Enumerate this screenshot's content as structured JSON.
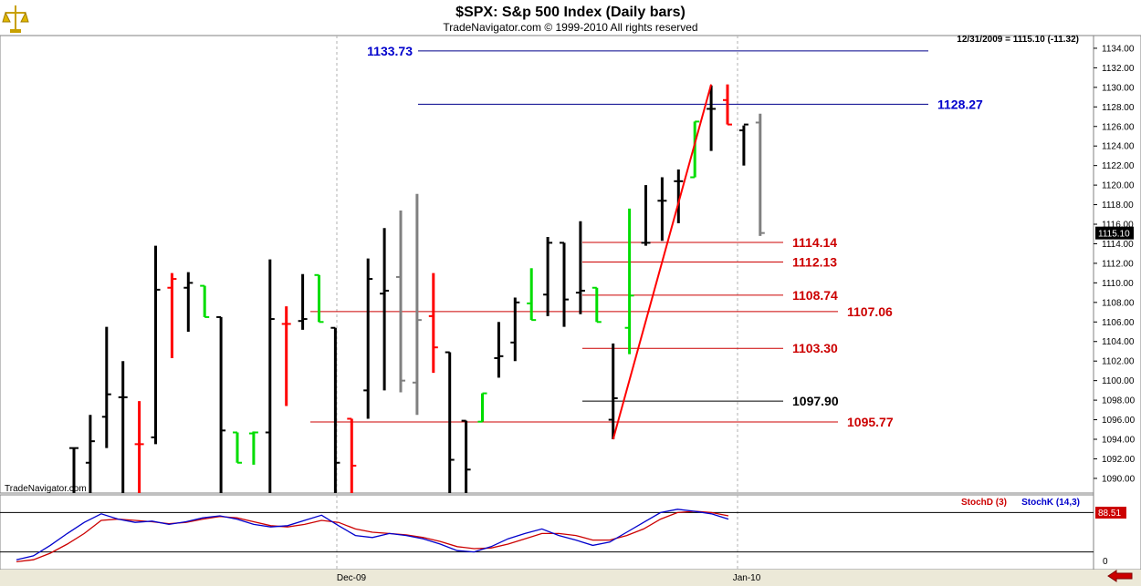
{
  "header": {
    "title": "$SPX:  S&p 500 Index  (Daily bars)",
    "copyright": "TradeNavigator.com © 1999-2010 All rights reserved",
    "last_bar_info": "12/31/2009 = 1115.10 (-11.32)",
    "watermark": "TradeNavigator.com"
  },
  "colors": {
    "up_bar": "#000000",
    "down_bar": "#ff0000",
    "green_bar": "#00dd00",
    "gray_bar": "#808080",
    "level_blue": "#00008b",
    "level_red": "#cc0000",
    "stoch_d": "#cc0000",
    "stoch_k": "#0000cc"
  },
  "chart_data": {
    "type": "bar",
    "subtype": "ohlc",
    "ylim": [
      1088.5,
      1135.3
    ],
    "y_ticks": [
      "1090.00",
      "1092.00",
      "1094.00",
      "1096.00",
      "1098.00",
      "1100.00",
      "1102.00",
      "1104.00",
      "1106.00",
      "1108.00",
      "1110.00",
      "1112.00",
      "1114.00",
      "1116.00",
      "1118.00",
      "1120.00",
      "1122.00",
      "1124.00",
      "1126.00",
      "1128.00",
      "1130.00",
      "1132.00",
      "1134.00"
    ],
    "x_ticks": [
      "Dec-09",
      "Jan-10"
    ],
    "last_price_label": "1115.10",
    "bars": [
      {
        "o": 1093.1,
        "h": 1093.1,
        "l": 1088.5,
        "c": 1093.1,
        "color": "black"
      },
      {
        "o": 1091.6,
        "h": 1096.5,
        "l": 1088.5,
        "c": 1093.8,
        "color": "black"
      },
      {
        "o": 1096.3,
        "h": 1105.5,
        "l": 1093.1,
        "c": 1098.6,
        "color": "black"
      },
      {
        "o": 1098.3,
        "h": 1102.0,
        "l": 1088.5,
        "c": 1098.3,
        "color": "black"
      },
      {
        "o": 1093.5,
        "h": 1097.9,
        "l": 1088.5,
        "c": 1093.5,
        "color": "red"
      },
      {
        "o": 1094.2,
        "h": 1113.8,
        "l": 1093.5,
        "c": 1109.3,
        "color": "black"
      },
      {
        "o": 1109.5,
        "h": 1111.0,
        "l": 1102.3,
        "c": 1110.4,
        "color": "red"
      },
      {
        "o": 1109.5,
        "h": 1111.1,
        "l": 1105.0,
        "c": 1110.0,
        "color": "black"
      },
      {
        "o": 1109.7,
        "h": 1109.7,
        "l": 1106.5,
        "c": 1106.5,
        "color": "green"
      },
      {
        "o": 1106.5,
        "h": 1106.5,
        "l": 1088.5,
        "c": 1094.9,
        "color": "black"
      },
      {
        "o": 1094.7,
        "h": 1094.7,
        "l": 1091.6,
        "c": 1091.6,
        "color": "green"
      },
      {
        "o": 1094.6,
        "h": 1094.8,
        "l": 1091.4,
        "c": 1094.7,
        "color": "green"
      },
      {
        "o": 1094.7,
        "h": 1112.4,
        "l": 1088.5,
        "c": 1106.3,
        "color": "black"
      },
      {
        "o": 1105.8,
        "h": 1107.6,
        "l": 1097.4,
        "c": 1105.8,
        "color": "red"
      },
      {
        "o": 1106.1,
        "h": 1110.9,
        "l": 1105.2,
        "c": 1106.3,
        "color": "black"
      },
      {
        "o": 1110.8,
        "h": 1110.8,
        "l": 1106.0,
        "c": 1106.0,
        "color": "green"
      },
      {
        "o": 1105.4,
        "h": 1105.4,
        "l": 1088.5,
        "c": 1091.6,
        "color": "black"
      },
      {
        "o": 1096.1,
        "h": 1096.1,
        "l": 1088.5,
        "c": 1091.3,
        "color": "red"
      },
      {
        "o": 1099.0,
        "h": 1112.5,
        "l": 1096.1,
        "c": 1110.4,
        "color": "black"
      },
      {
        "o": 1108.9,
        "h": 1115.6,
        "l": 1099.0,
        "c": 1109.2,
        "color": "black"
      },
      {
        "o": 1110.6,
        "h": 1117.4,
        "l": 1098.8,
        "c": 1100.0,
        "color": "gray"
      },
      {
        "o": 1099.8,
        "h": 1119.1,
        "l": 1096.5,
        "c": 1106.2,
        "color": "gray"
      },
      {
        "o": 1106.6,
        "h": 1111.0,
        "l": 1100.8,
        "c": 1103.4,
        "color": "red"
      },
      {
        "o": 1102.9,
        "h": 1102.9,
        "l": 1088.5,
        "c": 1091.9,
        "color": "black"
      },
      {
        "o": 1095.9,
        "h": 1095.9,
        "l": 1088.5,
        "c": 1090.9,
        "color": "black"
      },
      {
        "o": 1095.8,
        "h": 1098.7,
        "l": 1095.8,
        "c": 1098.7,
        "color": "green"
      },
      {
        "o": 1102.3,
        "h": 1106.0,
        "l": 1100.3,
        "c": 1102.5,
        "color": "black"
      },
      {
        "o": 1103.9,
        "h": 1108.5,
        "l": 1102.0,
        "c": 1108.0,
        "color": "black"
      },
      {
        "o": 1107.9,
        "h": 1111.5,
        "l": 1106.2,
        "c": 1106.2,
        "color": "green"
      },
      {
        "o": 1108.8,
        "h": 1114.7,
        "l": 1106.6,
        "c": 1114.1,
        "color": "black"
      },
      {
        "o": 1114.1,
        "h": 1114.1,
        "l": 1105.5,
        "c": 1108.3,
        "color": "black"
      },
      {
        "o": 1109.0,
        "h": 1116.3,
        "l": 1106.8,
        "c": 1109.2,
        "color": "black"
      },
      {
        "o": 1109.5,
        "h": 1109.5,
        "l": 1106.0,
        "c": 1106.0,
        "color": "green"
      },
      {
        "o": 1096.0,
        "h": 1103.8,
        "l": 1094.0,
        "c": 1098.2,
        "color": "black"
      },
      {
        "o": 1105.4,
        "h": 1117.6,
        "l": 1102.7,
        "c": 1108.7,
        "color": "green"
      },
      {
        "o": 1114.1,
        "h": 1120.0,
        "l": 1113.8,
        "c": 1114.1,
        "color": "black"
      },
      {
        "o": 1118.4,
        "h": 1120.8,
        "l": 1114.3,
        "c": 1118.4,
        "color": "black"
      },
      {
        "o": 1120.4,
        "h": 1121.6,
        "l": 1116.1,
        "c": 1120.4,
        "color": "black"
      },
      {
        "o": 1120.8,
        "h": 1126.5,
        "l": 1120.8,
        "c": 1126.5,
        "color": "green"
      },
      {
        "o": 1127.8,
        "h": 1130.2,
        "l": 1123.5,
        "c": 1127.8,
        "color": "black"
      },
      {
        "o": 1128.7,
        "h": 1130.3,
        "l": 1126.2,
        "c": 1126.2,
        "color": "red"
      },
      {
        "o": 1125.6,
        "h": 1126.1,
        "l": 1122.0,
        "c": 1126.2,
        "color": "black"
      },
      {
        "o": 1126.4,
        "h": 1127.3,
        "l": 1114.8,
        "c": 1115.1,
        "color": "gray"
      }
    ],
    "levels": [
      {
        "value": 1133.73,
        "label": "1133.73",
        "color": "blue",
        "label_side": "left"
      },
      {
        "value": 1128.27,
        "label": "1128.27",
        "color": "blue",
        "label_side": "right"
      },
      {
        "value": 1114.14,
        "label": "1114.14",
        "color": "red",
        "label_side": "right"
      },
      {
        "value": 1112.13,
        "label": "1112.13",
        "color": "red",
        "label_side": "right"
      },
      {
        "value": 1108.74,
        "label": "1108.74",
        "color": "red",
        "label_side": "right"
      },
      {
        "value": 1107.06,
        "label": "1107.06",
        "color": "red",
        "label_side": "right"
      },
      {
        "value": 1103.3,
        "label": "1103.30",
        "color": "red",
        "label_side": "right"
      },
      {
        "value": 1097.9,
        "label": "1097.90",
        "color": "black",
        "label_side": "right"
      },
      {
        "value": 1095.77,
        "label": "1095.77",
        "color": "red",
        "label_side": "right"
      }
    ],
    "trendline": {
      "from_bar": 33,
      "from_value": 1094.0,
      "to_bar": 39,
      "to_value": 1130.3,
      "color": "red"
    }
  },
  "stoch": {
    "stoch_d_label": "StochD (3)",
    "stoch_k_label": "StochK (14,3)",
    "value_label": "88.51",
    "zero_label": "0",
    "k_values": [
      8,
      14,
      30,
      48,
      65,
      78,
      70,
      65,
      67,
      62,
      66,
      72,
      75,
      70,
      62,
      58,
      60,
      68,
      76,
      60,
      45,
      42,
      48,
      45,
      40,
      32,
      22,
      20,
      28,
      40,
      48,
      55,
      45,
      38,
      30,
      35,
      50,
      65,
      80,
      85,
      82,
      78,
      70
    ],
    "d_values": [
      5,
      8,
      18,
      32,
      48,
      68,
      70,
      68,
      66,
      63,
      65,
      70,
      74,
      72,
      66,
      60,
      58,
      62,
      68,
      65,
      55,
      50,
      48,
      46,
      42,
      36,
      28,
      25,
      26,
      32,
      40,
      48,
      48,
      45,
      38,
      38,
      45,
      55,
      70,
      80,
      82,
      80,
      75
    ]
  }
}
